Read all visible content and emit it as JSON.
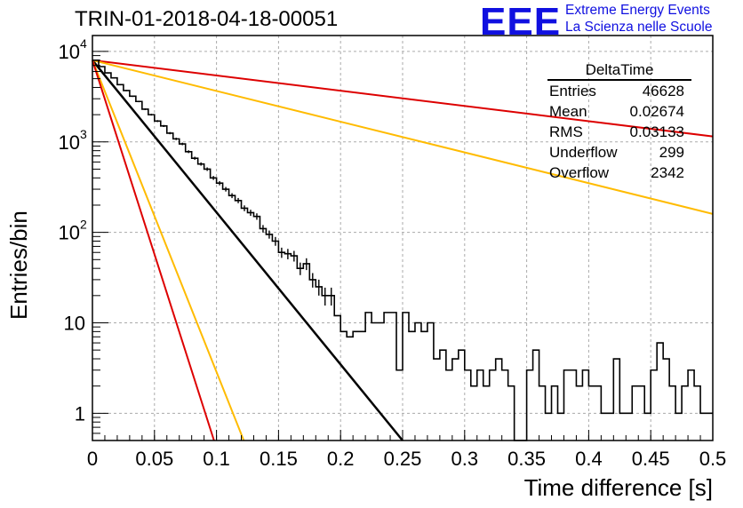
{
  "header": {
    "title": "TRIN-01-2018-04-18-00051",
    "logo_text": "EEE",
    "org_line1": "Extreme Energy Events",
    "org_line2": "La Scienza nelle Scuole"
  },
  "stats_box": {
    "name": "DeltaTime",
    "rows": [
      {
        "label": "Entries",
        "value": "46628"
      },
      {
        "label": "Mean",
        "value": "0.02674"
      },
      {
        "label": "RMS",
        "value": "0.03133"
      },
      {
        "label": "Underflow",
        "value": "299"
      },
      {
        "label": "Overflow",
        "value": "2342"
      }
    ]
  },
  "colors": {
    "histogram": "#000000",
    "fit": "#000000",
    "red_curve": "#dd0000",
    "orange_curve": "#ffbb00",
    "grid": "#aaaaaa",
    "logo": "#1010e0"
  },
  "chart_data": {
    "type": "line",
    "title": "TRIN-01-2018-04-18-00051",
    "xlabel": "Time difference [s]",
    "ylabel": "Entries/bin",
    "xlim": [
      0,
      0.5
    ],
    "ylim": [
      0.5,
      15000
    ],
    "yscale": "log",
    "grid": true,
    "x_ticks": [
      "0",
      "0.05",
      "0.1",
      "0.15",
      "0.2",
      "0.25",
      "0.3",
      "0.35",
      "0.4",
      "0.45",
      "0.5"
    ],
    "y_ticks": [
      {
        "value": 1,
        "label": "1"
      },
      {
        "value": 10,
        "label": "10"
      },
      {
        "value": 100,
        "label": "10",
        "exp": "2"
      },
      {
        "value": 1000,
        "label": "10",
        "exp": "3"
      },
      {
        "value": 10000,
        "label": "10",
        "exp": "4"
      }
    ],
    "histogram": {
      "name": "DeltaTime",
      "bin_width": 0.005,
      "x_start": 0,
      "values": [
        8000,
        6800,
        5800,
        5100,
        4300,
        3700,
        3200,
        2800,
        2300,
        2000,
        1700,
        1500,
        1250,
        1080,
        950,
        780,
        660,
        570,
        500,
        400,
        350,
        300,
        255,
        225,
        185,
        165,
        150,
        110,
        95,
        80,
        60,
        58,
        55,
        40,
        45,
        30,
        25,
        20,
        20,
        12,
        8,
        7,
        8,
        8,
        13,
        10,
        10,
        13,
        13,
        3,
        13,
        8,
        10,
        8,
        10,
        4,
        5,
        3,
        4,
        5,
        3,
        2,
        3,
        2,
        3,
        4,
        3,
        2,
        0,
        0,
        3,
        5,
        2,
        1,
        2,
        1,
        3,
        3,
        2,
        3,
        2,
        2,
        1,
        1,
        4,
        1,
        1,
        2,
        2,
        1,
        3,
        6,
        4,
        2,
        1,
        2,
        3,
        2,
        1,
        1
      ]
    },
    "series": [
      {
        "kind": "fit",
        "color": "#000000",
        "x": [
          0,
          0.25
        ],
        "y": [
          8000,
          0.5
        ]
      },
      {
        "kind": "curve",
        "color": "#dd0000",
        "x": [
          0,
          0.5
        ],
        "y": [
          8000,
          1150
        ]
      },
      {
        "kind": "curve",
        "color": "#ffbb00",
        "x": [
          0,
          0.5
        ],
        "y": [
          8000,
          160
        ]
      },
      {
        "kind": "curve",
        "color": "#ffbb00",
        "x": [
          0,
          0.122
        ],
        "y": [
          8000,
          0.5
        ]
      },
      {
        "kind": "curve",
        "color": "#dd0000",
        "x": [
          0,
          0.098
        ],
        "y": [
          8000,
          0.5
        ]
      }
    ]
  }
}
